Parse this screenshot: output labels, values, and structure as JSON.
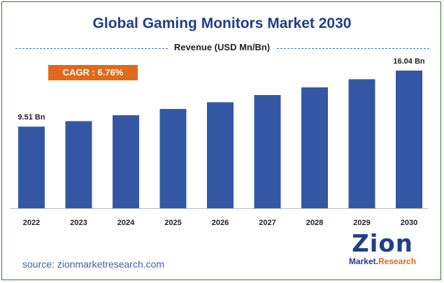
{
  "chart_data": {
    "type": "bar",
    "title": "Global Gaming Monitors Market 2030",
    "subtitle": "Revenue (USD Mn/Bn)",
    "categories": [
      "2022",
      "2023",
      "2024",
      "2025",
      "2026",
      "2027",
      "2028",
      "2029",
      "2030"
    ],
    "values": [
      9.51,
      10.15,
      10.84,
      11.57,
      12.35,
      13.19,
      14.08,
      15.03,
      16.04
    ],
    "labels": {
      "first": "9.51 Bn",
      "last": "16.04 Bn"
    },
    "ylim": [
      0,
      16.04
    ],
    "xlabel": "",
    "ylabel": "",
    "bar_color": "#3457a5",
    "grid": false
  },
  "cagr": {
    "label": "CAGR : 6.76%",
    "color": "#e06a1a"
  },
  "source": "source: zionmarketresearch.com",
  "logo": {
    "word": "Zion",
    "sub_main": "Market.",
    "sub_accent": "Research"
  }
}
